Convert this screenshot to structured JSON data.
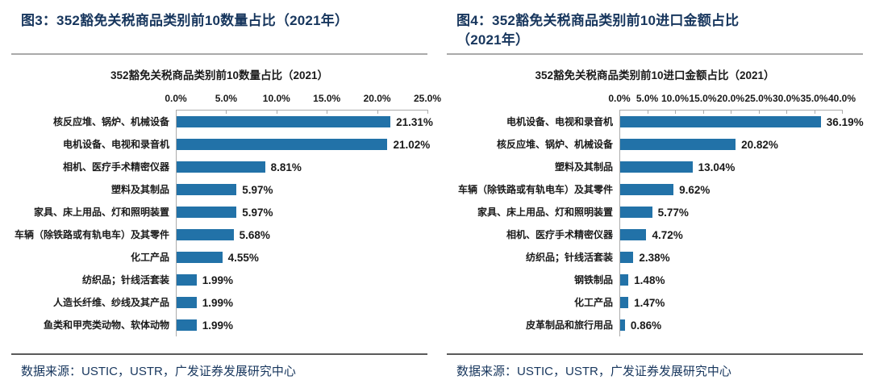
{
  "colors": {
    "bar_blue": "#2272A8",
    "heading_navy": "#17365D",
    "axis_gray": "#ABABAB"
  },
  "panels": [
    {
      "figure_caption_lines": [
        "图3：352豁免关税商品类别前10数量占比（2021年）"
      ],
      "source_text": "数据来源：USTIC，USTR，广发证券发展研究中心",
      "chart_data": {
        "type": "bar",
        "orientation": "horizontal",
        "title": "352豁免关税商品类别前10数量占比（2021）",
        "categories": [
          "核反应堆、锅炉、机械设备",
          "电机设备、电视和录音机",
          "相机、医疗手术精密仪器",
          "塑料及其制品",
          "家具、床上用品、灯和照明装置",
          "车辆（除铁路或有轨电车）及其零件",
          "化工产品",
          "纺织品；针线活套装",
          "人造长纤维、纱线及其产品",
          "鱼类和甲壳类动物、软体动物"
        ],
        "values": [
          21.31,
          21.02,
          8.81,
          5.97,
          5.97,
          5.68,
          4.55,
          1.99,
          1.99,
          1.99
        ],
        "value_labels": [
          "21.31%",
          "21.02%",
          "8.81%",
          "5.97%",
          "5.97%",
          "5.68%",
          "4.55%",
          "1.99%",
          "1.99%",
          "1.99%"
        ],
        "xlim": [
          0,
          25
        ],
        "xtick_labels": [
          "0.0%",
          "5.0%",
          "10.0%",
          "15.0%",
          "20.0%",
          "25.0%"
        ],
        "bar_color": "#2272A8",
        "grid": false,
        "legend": "none"
      }
    },
    {
      "figure_caption_lines": [
        "图4：352豁免关税商品类别前10进口金额占比",
        "（2021年）"
      ],
      "source_text": "数据来源：USTIC，USTR，广发证券发展研究中心",
      "chart_data": {
        "type": "bar",
        "orientation": "horizontal",
        "title": "352豁免关税商品类别前10进口金额占比（2021）",
        "categories": [
          "电机设备、电视和录音机",
          "核反应堆、锅炉、机械设备",
          "塑料及其制品",
          "车辆（除铁路或有轨电车）及其零件",
          "家具、床上用品、灯和照明装置",
          "相机、医疗手术精密仪器",
          "纺织品；针线活套装",
          "钢铁制品",
          "化工产品",
          "皮革制品和旅行用品"
        ],
        "values": [
          36.19,
          20.82,
          13.04,
          9.62,
          5.77,
          4.72,
          2.38,
          1.48,
          1.47,
          0.86
        ],
        "value_labels": [
          "36.19%",
          "20.82%",
          "13.04%",
          "9.62%",
          "5.77%",
          "4.72%",
          "2.38%",
          "1.48%",
          "1.47%",
          "0.86%"
        ],
        "xlim": [
          0,
          40
        ],
        "xtick_labels": [
          "0.0%",
          "5.0%",
          "10.0%",
          "15.0%",
          "20.0%",
          "25.0%",
          "30.0%",
          "35.0%",
          "40.0%"
        ],
        "bar_color": "#2272A8",
        "grid": false,
        "legend": "none"
      }
    }
  ]
}
